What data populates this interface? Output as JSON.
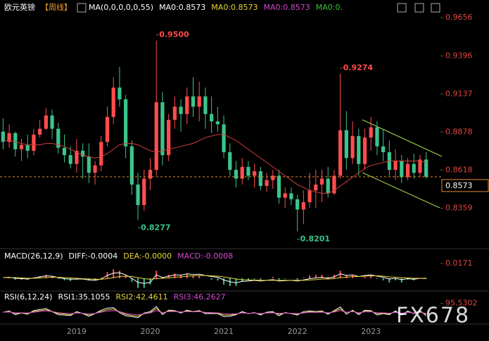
{
  "chart_data": [
    {
      "type": "candlestick",
      "title": "欧元英镑",
      "period": "【周线】",
      "indicator": "MA(0,0,0,0,0,55)",
      "readouts": [
        {
          "text": "MA0:0.8573",
          "color": "#ffffff"
        },
        {
          "text": "MA0:0.8573",
          "color": "#e8d43a"
        },
        {
          "text": "MA0:0.8573",
          "color": "#d04ad0"
        },
        {
          "text": "MA0:0.",
          "color": "#3ac43a"
        }
      ],
      "categories": [
        null,
        null,
        null,
        null,
        null,
        null,
        null,
        null,
        null,
        null,
        null,
        null,
        "2019",
        null,
        null,
        null,
        null,
        null,
        null,
        null,
        null,
        null,
        null,
        null,
        "2020",
        null,
        null,
        null,
        null,
        null,
        null,
        null,
        null,
        null,
        null,
        null,
        "2021",
        null,
        null,
        null,
        null,
        null,
        null,
        null,
        null,
        null,
        null,
        null,
        "2022",
        null,
        null,
        null,
        null,
        null,
        null,
        null,
        null,
        null,
        null,
        null,
        "2023",
        null,
        null,
        null,
        null,
        null,
        null,
        null,
        null,
        null
      ],
      "open": [
        0.888,
        0.881,
        0.887,
        0.876,
        0.879,
        0.875,
        0.886,
        0.89,
        0.899,
        0.89,
        0.877,
        0.872,
        0.866,
        0.875,
        0.871,
        0.86,
        0.865,
        0.881,
        0.898,
        0.918,
        0.91,
        0.878,
        0.852,
        0.838,
        0.856,
        0.862,
        0.908,
        0.872,
        0.896,
        0.905,
        0.9,
        0.912,
        0.905,
        0.912,
        0.9,
        0.895,
        0.893,
        0.874,
        0.862,
        0.856,
        0.864,
        0.858,
        0.861,
        0.851,
        0.855,
        0.858,
        0.843,
        0.846,
        0.842,
        0.835,
        0.84,
        0.848,
        0.852,
        0.856,
        0.846,
        0.858,
        0.889,
        0.87,
        0.885,
        0.866,
        0.884,
        0.891,
        0.878,
        0.874,
        0.862,
        0.868,
        0.857,
        0.866,
        0.86,
        0.869
      ],
      "high": [
        0.897,
        0.893,
        0.888,
        0.883,
        0.886,
        0.89,
        0.896,
        0.904,
        0.903,
        0.894,
        0.886,
        0.878,
        0.883,
        0.88,
        0.88,
        0.868,
        0.885,
        0.905,
        0.925,
        0.932,
        0.913,
        0.882,
        0.86,
        0.862,
        0.87,
        0.95,
        0.915,
        0.9,
        0.912,
        0.91,
        0.918,
        0.925,
        0.922,
        0.918,
        0.912,
        0.905,
        0.899,
        0.88,
        0.868,
        0.87,
        0.868,
        0.866,
        0.864,
        0.86,
        0.862,
        0.862,
        0.85,
        0.85,
        0.845,
        0.848,
        0.86,
        0.862,
        0.862,
        0.864,
        0.862,
        0.9274,
        0.902,
        0.895,
        0.89,
        0.89,
        0.898,
        0.895,
        0.89,
        0.882,
        0.876,
        0.872,
        0.87,
        0.873,
        0.872,
        0.874
      ],
      "low": [
        0.876,
        0.877,
        0.871,
        0.868,
        0.87,
        0.872,
        0.884,
        0.889,
        0.883,
        0.873,
        0.867,
        0.863,
        0.86,
        0.856,
        0.853,
        0.852,
        0.861,
        0.878,
        0.893,
        0.905,
        0.87,
        0.845,
        0.8277,
        0.834,
        0.848,
        0.858,
        0.865,
        0.868,
        0.89,
        0.888,
        0.893,
        0.898,
        0.895,
        0.89,
        0.887,
        0.888,
        0.87,
        0.858,
        0.85,
        0.852,
        0.855,
        0.85,
        0.848,
        0.847,
        0.849,
        0.839,
        0.836,
        0.838,
        0.8201,
        0.825,
        0.836,
        0.836,
        0.84,
        0.843,
        0.845,
        0.856,
        0.862,
        0.866,
        0.858,
        0.862,
        0.875,
        0.872,
        0.868,
        0.858,
        0.855,
        0.853,
        0.855,
        0.856,
        0.857,
        0.856
      ],
      "close": [
        0.881,
        0.887,
        0.876,
        0.879,
        0.875,
        0.886,
        0.89,
        0.899,
        0.89,
        0.877,
        0.872,
        0.866,
        0.875,
        0.871,
        0.86,
        0.865,
        0.881,
        0.898,
        0.918,
        0.91,
        0.878,
        0.852,
        0.838,
        0.856,
        0.862,
        0.908,
        0.872,
        0.896,
        0.905,
        0.9,
        0.912,
        0.905,
        0.912,
        0.9,
        0.895,
        0.893,
        0.874,
        0.862,
        0.856,
        0.864,
        0.858,
        0.861,
        0.851,
        0.855,
        0.858,
        0.843,
        0.846,
        0.842,
        0.835,
        0.84,
        0.848,
        0.852,
        0.856,
        0.846,
        0.858,
        0.889,
        0.87,
        0.885,
        0.866,
        0.884,
        0.891,
        0.878,
        0.874,
        0.862,
        0.868,
        0.857,
        0.866,
        0.86,
        0.869,
        0.8573
      ],
      "up_color": "#ff4d4d",
      "down_color": "#3cc48a",
      "ma": {
        "color": "#d23c3c",
        "values": [
          0.882,
          0.882,
          0.881,
          0.88,
          0.879,
          0.879,
          0.879,
          0.88,
          0.88,
          0.879,
          0.878,
          0.876,
          0.874,
          0.872,
          0.871,
          0.87,
          0.871,
          0.873,
          0.876,
          0.879,
          0.88,
          0.88,
          0.879,
          0.877,
          0.875,
          0.874,
          0.875,
          0.876,
          0.877,
          0.878,
          0.879,
          0.88,
          0.882,
          0.884,
          0.885,
          0.886,
          0.886,
          0.884,
          0.882,
          0.879,
          0.876,
          0.873,
          0.87,
          0.867,
          0.864,
          0.861,
          0.858,
          0.855,
          0.852,
          0.85,
          0.848,
          0.847,
          0.846,
          0.846,
          0.848,
          0.851,
          0.854,
          0.857,
          0.86,
          0.863,
          0.865,
          0.866,
          0.867,
          0.868,
          0.868,
          0.868,
          0.868,
          0.868,
          0.868,
          0.867
        ]
      },
      "ylim": [
        0.8107,
        0.969
      ],
      "yticks": [
        {
          "value": 0.9656,
          "label": "0.9656"
        },
        {
          "value": 0.9396,
          "label": "0.9396"
        },
        {
          "value": 0.9137,
          "label": "0.9137"
        },
        {
          "value": 0.8878,
          "label": "0.8878"
        },
        {
          "value": 0.8618,
          "label": "0.8618"
        },
        {
          "value": 0.8359,
          "label": "0.8359"
        }
      ],
      "last_price": 0.8573,
      "annotations": [
        {
          "value": 0.95,
          "label": "0.9500",
          "color": "#ff4d4d"
        },
        {
          "value": 0.9274,
          "label": "0.9274",
          "color": "#ff4d4d"
        },
        {
          "value": 0.8277,
          "label": "0.8277",
          "color": "#3cc48a"
        },
        {
          "value": 0.8201,
          "label": "0.8201",
          "color": "#3cc48a"
        }
      ]
    },
    {
      "type": "macd",
      "indicator": "MACD(26,12,9)",
      "readouts": [
        {
          "text": "DIFF:-0.0004",
          "color": "#ffffff"
        },
        {
          "text": "DEA:-0.0000",
          "color": "#e8d43a"
        },
        {
          "text": "MACD:-0.0008",
          "color": "#d04ad0"
        }
      ],
      "dif": {
        "color": "#ffffff",
        "values": [
          0.0008,
          0.0012,
          0,
          -0.0004,
          -0.0008,
          0.0004,
          0.0016,
          0.0028,
          0.0024,
          0.0008,
          -0.0004,
          -0.0012,
          -0.0008,
          -0.0008,
          -0.002,
          -0.0024,
          -0.0008,
          0.0032,
          0.006,
          0.0064,
          0.004,
          0,
          -0.0048,
          -0.006,
          -0.0048,
          0.004,
          0.0008,
          0.0024,
          0.004,
          0.0036,
          0.0052,
          0.0044,
          0.0048,
          0.0032,
          0.002,
          0.0012,
          -0.002,
          -0.004,
          -0.0052,
          -0.0036,
          -0.0032,
          -0.0024,
          -0.0032,
          -0.0024,
          -0.0016,
          -0.0032,
          -0.0028,
          -0.0024,
          -0.0032,
          -0.002,
          -0.0004,
          0.0004,
          0.0012,
          0,
          0.0016,
          0.0052,
          0.0032,
          0.004,
          0.002,
          0.0032,
          0.004,
          0.0024,
          0.0012,
          -0.0008,
          0,
          -0.0016,
          -0.0004,
          -0.0012,
          0,
          -0.0004
        ]
      },
      "dea": {
        "color": "#e8d43a",
        "values": [
          0.0008,
          0.0008,
          0.0008,
          0.0004,
          0,
          0,
          0.0004,
          0.0008,
          0.0012,
          0.0012,
          0.0008,
          0.0004,
          0,
          -0.0004,
          -0.0008,
          -0.0012,
          -0.0012,
          -0.0004,
          0.0008,
          0.002,
          0.0024,
          0.002,
          0.0008,
          -0.0004,
          -0.0012,
          -0.0004,
          0,
          0.0004,
          0.0012,
          0.0016,
          0.0024,
          0.0028,
          0.0032,
          0.0032,
          0.0028,
          0.0024,
          0.0016,
          0.0004,
          -0.0008,
          -0.0016,
          -0.002,
          -0.002,
          -0.0024,
          -0.0024,
          -0.0024,
          -0.0024,
          -0.0024,
          -0.0024,
          -0.0024,
          -0.0024,
          -0.002,
          -0.0016,
          -0.0008,
          -0.0008,
          -0.0004,
          0.0008,
          0.0012,
          0.002,
          0.002,
          0.0024,
          0.0028,
          0.0028,
          0.0024,
          0.0016,
          0.0012,
          0.0008,
          0.0004,
          0,
          0,
          0
        ]
      },
      "macd": {
        "up_color": "#ff4d4d",
        "down_color": "#3cc48a",
        "values": [
          0,
          0.0008,
          -0.0016,
          -0.0016,
          -0.0016,
          0.0008,
          0.0024,
          0.004,
          0.0024,
          -0.0008,
          -0.0024,
          -0.0032,
          -0.0016,
          -0.0008,
          -0.0024,
          -0.0024,
          0.0008,
          0.0072,
          0.0104,
          0.0088,
          0.0032,
          -0.004,
          -0.0112,
          -0.0112,
          -0.0072,
          0.0088,
          0.0016,
          0.004,
          0.0056,
          0.004,
          0.0056,
          0.0032,
          0.0032,
          0,
          -0.0016,
          -0.0024,
          -0.0072,
          -0.0088,
          -0.0088,
          -0.004,
          -0.0024,
          -0.0008,
          -0.0016,
          0,
          0.0016,
          -0.0016,
          -0.0008,
          0,
          -0.0016,
          0.0008,
          0.0032,
          0.004,
          0.004,
          0.0016,
          0.004,
          0.0088,
          0.004,
          0.004,
          0,
          0.0016,
          0.0024,
          -0.0008,
          -0.0024,
          -0.0048,
          -0.0024,
          -0.0048,
          -0.0016,
          -0.0024,
          0,
          -0.0008
        ]
      },
      "ylim": [
        -0.0106,
        0.0309
      ],
      "yticks": [
        0.0171
      ]
    },
    {
      "type": "rsi",
      "indicator": "RSI(6,12,24)",
      "readouts": [
        {
          "text": "RSI1:35.1055",
          "color": "#ffffff"
        },
        {
          "text": "RSI2:42.4611",
          "color": "#e8d43a"
        },
        {
          "text": "RSI3:46.2627",
          "color": "#d04ad0"
        }
      ],
      "series": [
        {
          "color": "#ffffff",
          "values": [
            52,
            58,
            40,
            48,
            42,
            60,
            65,
            70,
            55,
            40,
            38,
            35,
            55,
            45,
            32,
            45,
            62,
            72,
            75,
            50,
            35,
            30,
            25,
            48,
            55,
            80,
            40,
            62,
            60,
            48,
            62,
            55,
            60,
            45,
            46,
            45,
            30,
            32,
            40,
            55,
            45,
            50,
            38,
            52,
            55,
            35,
            50,
            45,
            38,
            55,
            58,
            55,
            58,
            42,
            60,
            78,
            42,
            62,
            40,
            62,
            60,
            38,
            45,
            40,
            58,
            38,
            58,
            45,
            60,
            35.1055
          ]
        },
        {
          "color": "#e8d43a",
          "values": [
            52,
            55,
            46,
            48,
            45,
            55,
            60,
            64,
            56,
            46,
            43,
            40,
            50,
            46,
            38,
            45,
            56,
            64,
            68,
            55,
            42,
            36,
            32,
            44,
            50,
            70,
            48,
            58,
            58,
            52,
            58,
            55,
            57,
            50,
            49,
            47,
            38,
            38,
            42,
            50,
            46,
            49,
            42,
            49,
            51,
            42,
            48,
            46,
            42,
            50,
            54,
            53,
            55,
            47,
            56,
            68,
            50,
            58,
            46,
            57,
            57,
            45,
            47,
            44,
            53,
            43,
            53,
            47,
            54,
            42.4611
          ]
        },
        {
          "color": "#d04ad0",
          "values": [
            52,
            53,
            49,
            49,
            48,
            52,
            55,
            58,
            55,
            50,
            47,
            45,
            48,
            47,
            43,
            46,
            52,
            57,
            60,
            55,
            47,
            42,
            39,
            44,
            48,
            60,
            50,
            55,
            55,
            53,
            55,
            54,
            55,
            51,
            50,
            49,
            44,
            43,
            44,
            48,
            47,
            48,
            45,
            48,
            49,
            46,
            48,
            47,
            45,
            48,
            51,
            51,
            52,
            49,
            53,
            60,
            52,
            55,
            49,
            54,
            54,
            49,
            49,
            47,
            51,
            47,
            51,
            48,
            51,
            46.2627
          ]
        }
      ],
      "ylim": [
        0,
        140
      ],
      "yticks": [
        95.5302
      ]
    }
  ],
  "watermark": "FX678"
}
